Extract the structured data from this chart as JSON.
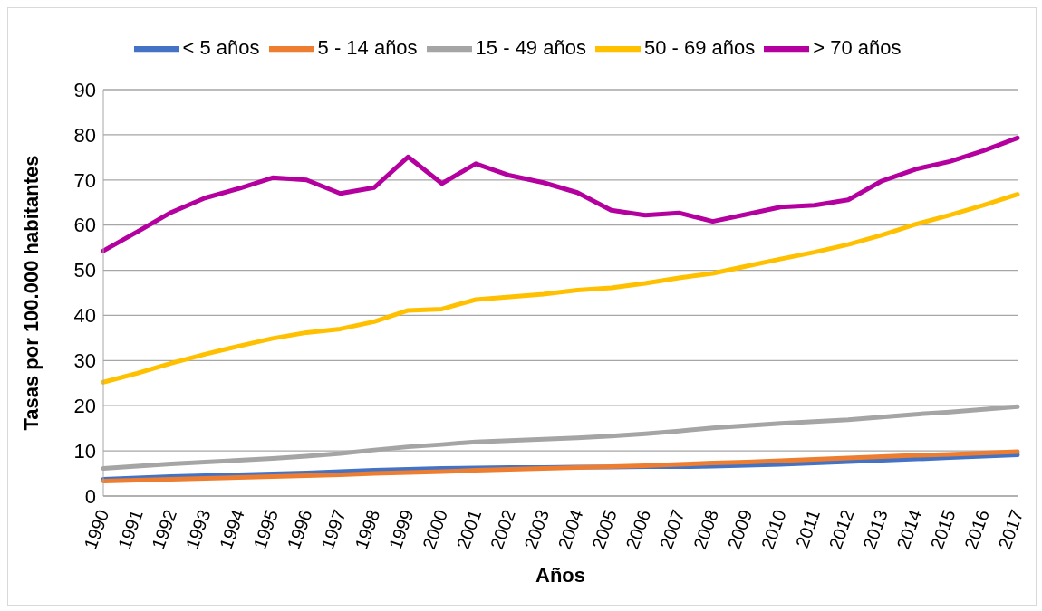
{
  "chart_data": {
    "type": "line",
    "xlabel": "Años",
    "ylabel": "Tasas por 100.000 habitantes",
    "categories": [
      "1990",
      "1991",
      "1992",
      "1993",
      "1994",
      "1995",
      "1996",
      "1997",
      "1998",
      "1999",
      "2000",
      "2001",
      "2002",
      "2003",
      "2004",
      "2005",
      "2006",
      "2007",
      "2008",
      "2009",
      "2010",
      "2011",
      "2012",
      "2013",
      "2014",
      "2015",
      "2016",
      "2017"
    ],
    "series": [
      {
        "name": "< 5 años",
        "color": "#4472c4",
        "values": [
          3.7,
          4,
          4.3,
          4.5,
          4.7,
          4.9,
          5.1,
          5.4,
          5.7,
          5.9,
          6.1,
          6.2,
          6.3,
          6.3,
          6.4,
          6.4,
          6.5,
          6.5,
          6.6,
          6.8,
          7,
          7.3,
          7.6,
          7.9,
          8.2,
          8.5,
          8.8,
          9.1
        ]
      },
      {
        "name": "5 - 14 años",
        "color": "#ed7d31",
        "values": [
          3.3,
          3.5,
          3.7,
          3.9,
          4.1,
          4.3,
          4.5,
          4.7,
          5,
          5.2,
          5.4,
          5.7,
          5.9,
          6.1,
          6.3,
          6.5,
          6.7,
          7,
          7.3,
          7.5,
          7.8,
          8.1,
          8.4,
          8.7,
          9,
          9.2,
          9.5,
          9.8
        ]
      },
      {
        "name": "15 - 49 años",
        "color": "#a5a5a5",
        "values": [
          6.1,
          6.6,
          7.1,
          7.5,
          7.9,
          8.3,
          8.8,
          9.4,
          10.2,
          10.9,
          11.4,
          12,
          12.3,
          12.6,
          12.9,
          13.3,
          13.8,
          14.4,
          15.1,
          15.6,
          16.1,
          16.5,
          16.9,
          17.5,
          18.1,
          18.6,
          19.2,
          19.8
        ]
      },
      {
        "name": "50 - 69 años",
        "color": "#ffc000",
        "values": [
          25.2,
          27.2,
          29.4,
          31.4,
          33.2,
          34.9,
          36.2,
          37,
          38.6,
          41.1,
          41.4,
          43.5,
          44.1,
          44.7,
          45.6,
          46.1,
          47.1,
          48.3,
          49.3,
          50.9,
          52.5,
          54,
          55.7,
          57.8,
          60.2,
          62.2,
          64.4,
          66.8
        ]
      },
      {
        "name": "> 70 años",
        "color": "#b4009e",
        "values": [
          54.3,
          58.5,
          62.8,
          66,
          68.1,
          70.5,
          70,
          67,
          68.3,
          75.1,
          69.2,
          73.6,
          71,
          69.4,
          67.2,
          63.3,
          62.2,
          62.7,
          60.8,
          62.4,
          64,
          64.4,
          65.6,
          69.8,
          72.4,
          74.1,
          76.5,
          79.3
        ]
      }
    ],
    "ylim": [
      0,
      90
    ],
    "yticks": [
      0,
      10,
      20,
      30,
      40,
      50,
      60,
      70,
      80,
      90
    ],
    "grid": "y",
    "legend": "top",
    "marker": "none",
    "line_style": "solid"
  }
}
